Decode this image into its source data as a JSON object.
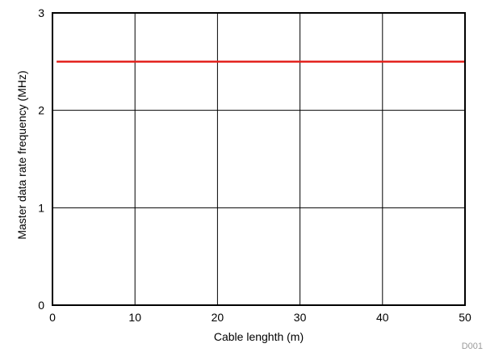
{
  "chart_data": {
    "type": "line",
    "xlabel": "Cable lenghth (m)",
    "ylabel": "Master data rate frequency  (MHz)",
    "xlim": [
      0,
      50
    ],
    "ylim": [
      0,
      3
    ],
    "x_ticks": [
      0,
      10,
      20,
      30,
      40,
      50
    ],
    "y_ticks": [
      0,
      1,
      2,
      3
    ],
    "grid": true,
    "series": [
      {
        "color": "#e3211c",
        "x": [
          0.5,
          50
        ],
        "y": [
          2.5,
          2.5
        ]
      }
    ],
    "figure_id": "D001"
  }
}
